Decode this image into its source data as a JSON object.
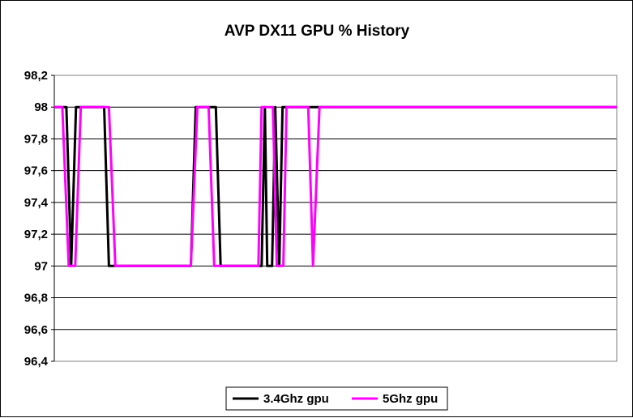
{
  "chart_data": {
    "type": "line",
    "title": "AVP DX11 GPU % History",
    "xlabel": "",
    "ylabel": "",
    "ylim": [
      96.4,
      98.2
    ],
    "y_ticks": [
      98.2,
      98,
      97.8,
      97.6,
      97.4,
      97.2,
      97,
      96.8,
      96.6,
      96.4
    ],
    "y_tick_labels": [
      "98,2",
      "98",
      "97,8",
      "97,6",
      "97,4",
      "97,2",
      "97",
      "96,8",
      "96,6",
      "96,4"
    ],
    "grid": true,
    "legend_position": "bottom",
    "series": [
      {
        "name": "3.4Ghz gpu",
        "color": "#000000",
        "points": [
          [
            0,
            98
          ],
          [
            15,
            98
          ],
          [
            21,
            97
          ],
          [
            27,
            98
          ],
          [
            62,
            98
          ],
          [
            68,
            97
          ],
          [
            170,
            97
          ],
          [
            176,
            98
          ],
          [
            201,
            98
          ],
          [
            207,
            97
          ],
          [
            258,
            97
          ],
          [
            262,
            98
          ],
          [
            265,
            97
          ],
          [
            271,
            97
          ],
          [
            275,
            98
          ],
          [
            280,
            97
          ],
          [
            284,
            98
          ],
          [
            700,
            98
          ]
        ]
      },
      {
        "name": "5Ghz gpu",
        "color": "#ff00ff",
        "points": [
          [
            0,
            98
          ],
          [
            10,
            98
          ],
          [
            18,
            97
          ],
          [
            26,
            97
          ],
          [
            33,
            98
          ],
          [
            68,
            98
          ],
          [
            76,
            97
          ],
          [
            170,
            97
          ],
          [
            178,
            98
          ],
          [
            192,
            98
          ],
          [
            199,
            97
          ],
          [
            216,
            97
          ],
          [
            254,
            97
          ],
          [
            258,
            98
          ],
          [
            272,
            98
          ],
          [
            277,
            97
          ],
          [
            285,
            97
          ],
          [
            289,
            98
          ],
          [
            316,
            98
          ],
          [
            322,
            97
          ],
          [
            330,
            98
          ],
          [
            700,
            98
          ]
        ]
      }
    ]
  }
}
